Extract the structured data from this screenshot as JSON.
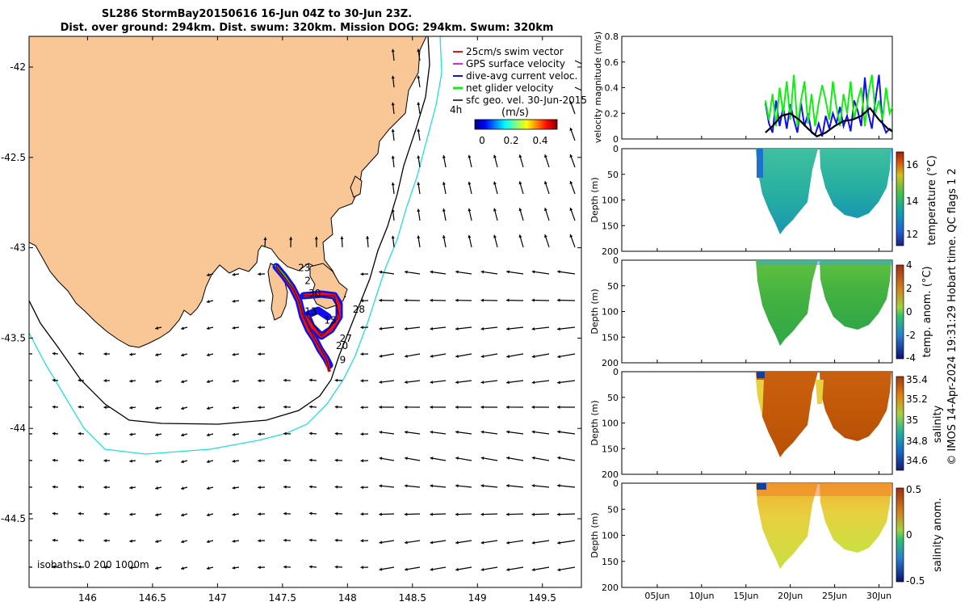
{
  "title_line1": "SL286 StormBay20150616 16-Jun 04Z to 30-Jun 23Z.",
  "title_line2": "Dist. over ground: 294km. Dist. swum: 320km. Mission DOG: 294km. Swum: 320km",
  "colors": {
    "land": "#f9c696",
    "coast": "#000000",
    "iso200": "#000000",
    "iso1000": "#22dddd",
    "track_blue": "#1010ee",
    "track_red": "#ee1010",
    "gps": "#dd22dd",
    "net": "#11ee11",
    "sfc": "#000000"
  },
  "chart_data": {
    "map": {
      "type": "scatter",
      "xlim": [
        145.55,
        149.8
      ],
      "ylim": [
        -44.88,
        -41.83
      ],
      "xticks": [
        "146",
        "146.5",
        "147",
        "147.5",
        "148",
        "148.5",
        "149",
        "149.5"
      ],
      "yticks": [
        "-42",
        "-42.5",
        "-43",
        "-43.5",
        "-44",
        "-44.5"
      ],
      "legend": [
        {
          "label": "25cm/s swim vector",
          "color": "#ee1010"
        },
        {
          "label": "GPS surface velocity",
          "color": "#dd22dd"
        },
        {
          "label": "dive-avg current veloc.",
          "color": "#1010ee"
        },
        {
          "label": "net glider velocity",
          "color": "#11ee11"
        },
        {
          "label": "sfc geo. vel. 30-Jun-2015",
          "color": "#000000"
        }
      ],
      "time_label": "4h",
      "colorbar": {
        "title": "(m/s)",
        "ticks": [
          "0",
          "0.2",
          "0.4"
        ],
        "range": [
          0,
          0.5
        ]
      },
      "isobath_label": "isobaths: 0   200  1000m",
      "day_labels": [
        {
          "text": "23",
          "lon": 147.62,
          "lat": -43.13
        },
        {
          "text": "2",
          "lon": 147.67,
          "lat": -43.2
        },
        {
          "text": "30",
          "lon": 147.7,
          "lat": -43.27
        },
        {
          "text": "13",
          "lon": 147.67,
          "lat": -43.37
        },
        {
          "text": "28",
          "lon": 148.04,
          "lat": -43.36
        },
        {
          "text": "15",
          "lon": 147.82,
          "lat": -43.42
        },
        {
          "text": "27",
          "lon": 147.94,
          "lat": -43.52
        },
        {
          "text": "20",
          "lon": 147.91,
          "lat": -43.56
        },
        {
          "text": "9",
          "lon": 147.94,
          "lat": -43.64
        }
      ]
    },
    "timeseries": {
      "type": "line",
      "ylabel": "velocity magnitude (m/s)",
      "ylim": [
        0,
        0.8
      ],
      "yticks": [
        "0",
        "0.2",
        "0.4",
        "0.6",
        "0.8"
      ],
      "xlim_days": [
        0,
        30.5
      ],
      "series": [
        {
          "name": "dive-avg current",
          "color": "#1010ee",
          "x": [
            16.2,
            16.6,
            17.0,
            17.4,
            17.8,
            18.2,
            18.6,
            19.0,
            19.4,
            19.8,
            20.2,
            20.6,
            21.0,
            21.4,
            21.8,
            22.2,
            22.6,
            23.0,
            23.4,
            23.8,
            24.2,
            24.6,
            25.0,
            25.4,
            25.8,
            26.2,
            26.6,
            27.0,
            27.4,
            27.8,
            28.2,
            28.6,
            29.0,
            29.4,
            29.8,
            30.2,
            30.5
          ],
          "y": [
            0.28,
            0.12,
            0.05,
            0.3,
            0.1,
            0.25,
            0.08,
            0.27,
            0.15,
            0.05,
            0.28,
            0.1,
            0.2,
            0.05,
            0.03,
            0.12,
            0.02,
            0.18,
            0.08,
            0.2,
            0.12,
            0.25,
            0.1,
            0.18,
            0.06,
            0.3,
            0.22,
            0.1,
            0.48,
            0.2,
            0.08,
            0.3,
            0.5,
            0.12,
            0.05,
            0.08,
            0.06
          ]
        },
        {
          "name": "net glider velocity",
          "color": "#11ee11",
          "x": [
            16.2,
            16.6,
            17.0,
            17.4,
            17.8,
            18.2,
            18.6,
            19.0,
            19.4,
            19.8,
            20.2,
            20.6,
            21.0,
            21.4,
            21.8,
            22.2,
            22.6,
            23.0,
            23.4,
            23.8,
            24.2,
            24.6,
            25.0,
            25.4,
            25.8,
            26.2,
            26.6,
            27.0,
            27.4,
            27.8,
            28.2,
            28.6,
            29.0,
            29.4,
            29.8,
            30.2,
            30.5
          ],
          "y": [
            0.3,
            0.15,
            0.35,
            0.1,
            0.4,
            0.2,
            0.45,
            0.15,
            0.5,
            0.1,
            0.3,
            0.45,
            0.12,
            0.35,
            0.1,
            0.28,
            0.42,
            0.3,
            0.15,
            0.45,
            0.25,
            0.1,
            0.35,
            0.2,
            0.45,
            0.15,
            0.3,
            0.4,
            0.1,
            0.35,
            0.5,
            0.2,
            0.3,
            0.15,
            0.4,
            0.2,
            0.25
          ]
        },
        {
          "name": "sfc geo. vel.",
          "color": "#000000",
          "x": [
            16.2,
            17.0,
            18.0,
            19.0,
            20.0,
            21.0,
            22.0,
            23.0,
            24.0,
            25.0,
            26.0,
            27.0,
            28.0,
            29.0,
            30.0,
            30.5
          ],
          "y": [
            0.05,
            0.1,
            0.18,
            0.2,
            0.15,
            0.08,
            0.02,
            0.05,
            0.1,
            0.14,
            0.15,
            0.18,
            0.24,
            0.15,
            0.08,
            0.06
          ]
        }
      ]
    },
    "sections": [
      {
        "name": "temperature",
        "cbar_label": "temperature (°C)",
        "ticks": [
          "12",
          "14",
          "16"
        ],
        "range": [
          11.2,
          16.8
        ]
      },
      {
        "name": "temp_anom",
        "cbar_label": "temp. anom. (°C)",
        "ticks": [
          "-4",
          "-2",
          "0",
          "2",
          "4"
        ],
        "range": [
          -4,
          4
        ]
      },
      {
        "name": "salinity",
        "cbar_label": "salinity",
        "ticks": [
          "34.6",
          "34.8",
          "35",
          "35.2",
          "35.4"
        ],
        "range": [
          34.5,
          35.42
        ]
      },
      {
        "name": "sal_anom",
        "cbar_label": "salinity anom.",
        "ticks": [
          "-0.5",
          "0",
          "0.5"
        ],
        "range": [
          -0.5,
          0.5
        ]
      }
    ],
    "depth_ticks": [
      "0",
      "50",
      "100",
      "150",
      "200"
    ],
    "depth_label": "Depth (m)",
    "time_ticks": [
      {
        "label": "05Jun",
        "day": 4
      },
      {
        "label": "10Jun",
        "day": 9
      },
      {
        "label": "15Jun",
        "day": 14
      },
      {
        "label": "20Jun",
        "day": 19
      },
      {
        "label": "25Jun",
        "day": 24
      },
      {
        "label": "30Jun",
        "day": 29
      }
    ]
  },
  "footer_vertical": "© IMOS 14-Apr-2024 19:31:29 Hobart time. QC flags 1  2"
}
